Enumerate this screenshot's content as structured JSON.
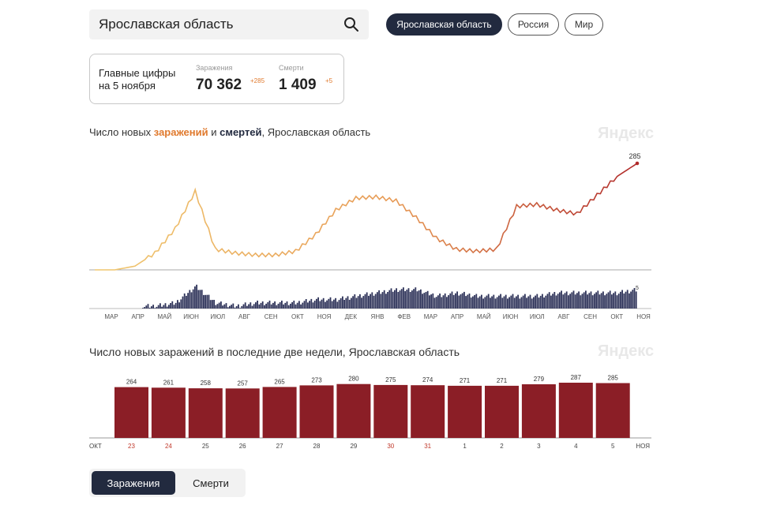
{
  "search": {
    "value": "Ярославская область"
  },
  "region_tabs": [
    {
      "label": "Ярославская область",
      "active": true
    },
    {
      "label": "Россия",
      "active": false
    },
    {
      "label": "Мир",
      "active": false
    }
  ],
  "main_figures": {
    "label_line1": "Главные цифры",
    "label_line2": "на 5 ноября",
    "cases": {
      "caption": "Заражения",
      "value": "70 362",
      "delta": "+285"
    },
    "deaths": {
      "caption": "Смерти",
      "value": "1 409",
      "delta": "+5"
    }
  },
  "chart1": {
    "title_prefix": "Число новых ",
    "title_cases": "заражений",
    "title_and": " и ",
    "title_deaths": "смертей",
    "title_suffix": ", Ярославская область",
    "watermark": "Яндекс",
    "end_label_cases": "285",
    "end_label_deaths": "5"
  },
  "chart2": {
    "title": "Число новых заражений в последние две недели, Ярославская область",
    "watermark": "Яндекс"
  },
  "bottom_tabs": {
    "cases": "Заражения",
    "deaths": "Смерти"
  },
  "colors": {
    "bar": "#8b1e26",
    "deaths": "#2e3359",
    "accent_dark": "#222a3f",
    "cases_line_start": "#f0c870",
    "cases_line_end": "#b02a2a"
  },
  "chart_data": [
    {
      "type": "line",
      "title": "Число новых заражений и смертей, Ярославская область",
      "x_tick_labels": [
        "МАР",
        "АПР",
        "МАЙ",
        "ИЮН",
        "ИЮЛ",
        "АВГ",
        "СЕН",
        "ОКТ",
        "НОЯ",
        "ДЕК",
        "ЯНВ",
        "ФЕВ",
        "МАР",
        "АПР",
        "МАЙ",
        "ИЮН",
        "ИЮЛ",
        "АВГ",
        "СЕН",
        "ОКТ",
        "НОЯ"
      ],
      "series": [
        {
          "values": [
            0,
            0,
            10,
            45,
            110,
            210,
            55,
            45,
            40,
            40,
            50,
            95,
            160,
            192,
            195,
            185,
            140,
            85,
            55,
            50,
            55,
            170,
            175,
            160,
            150,
            200,
            250,
            285
          ]
        },
        {
          "values": [
            0,
            0,
            0,
            0,
            1,
            6,
            1,
            0,
            1,
            1,
            1,
            2,
            2,
            3,
            4,
            5,
            5,
            3,
            4,
            3,
            3,
            3,
            3,
            4,
            4,
            4,
            4,
            5
          ]
        }
      ],
      "last_value_labels": {
        "cases": 285,
        "deaths": 5
      }
    },
    {
      "type": "bar",
      "title": "Число новых заражений в последние две недели, Ярославская область",
      "categories": [
        "23",
        "24",
        "25",
        "26",
        "27",
        "28",
        "29",
        "30",
        "31",
        "1",
        "2",
        "3",
        "4",
        "5"
      ],
      "values": [
        264,
        261,
        258,
        257,
        265,
        273,
        280,
        275,
        274,
        271,
        271,
        279,
        287,
        285
      ],
      "weekend_days": [
        "23",
        "24",
        "30",
        "31"
      ],
      "month_start": "ОКТ",
      "month_end": "НОЯ",
      "bar_color": "#8b1e26"
    }
  ]
}
